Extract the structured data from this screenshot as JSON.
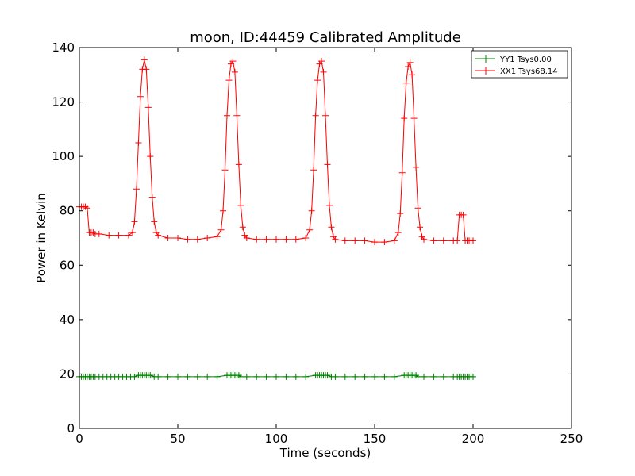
{
  "chart_data": {
    "type": "line",
    "title": "moon, ID:44459 Calibrated Amplitude",
    "xlabel": "Time (seconds)",
    "ylabel": "Power in Kelvin",
    "xlim": [
      0,
      250
    ],
    "ylim": [
      0,
      140
    ],
    "xticks": [
      0,
      50,
      100,
      150,
      200,
      250
    ],
    "yticks": [
      0,
      20,
      40,
      60,
      80,
      100,
      120,
      140
    ],
    "grid": false,
    "legend_position": "top-right",
    "series": [
      {
        "name": "YY1 Tsys0.00",
        "color": "#008000",
        "marker": "+",
        "x": [
          0,
          1,
          2,
          3,
          4,
          5,
          6,
          7,
          8,
          10,
          12,
          14,
          16,
          18,
          20,
          22,
          24,
          26,
          28,
          30,
          31,
          32,
          33,
          34,
          35,
          36,
          38,
          40,
          45,
          50,
          55,
          60,
          65,
          70,
          75,
          76,
          77,
          78,
          79,
          80,
          81,
          82,
          85,
          90,
          95,
          100,
          105,
          110,
          115,
          120,
          121,
          122,
          123,
          124,
          125,
          126,
          128,
          130,
          135,
          140,
          145,
          150,
          155,
          160,
          165,
          166,
          167,
          168,
          169,
          170,
          171,
          172,
          175,
          180,
          185,
          190,
          192,
          193,
          194,
          195,
          196,
          197,
          198,
          199,
          200
        ],
        "y": [
          19,
          19,
          19,
          19,
          19,
          19,
          19,
          19,
          19,
          19,
          19,
          19,
          19,
          19,
          19,
          19,
          19,
          19,
          19,
          19.5,
          19.5,
          19.5,
          19.5,
          19.5,
          19.5,
          19.5,
          19,
          19,
          19,
          19,
          19,
          19,
          19,
          19,
          19.5,
          19.5,
          19.5,
          19.5,
          19.5,
          19.5,
          19.5,
          19,
          19,
          19,
          19,
          19,
          19,
          19,
          19,
          19.5,
          19.5,
          19.5,
          19.5,
          19.5,
          19.5,
          19.5,
          19,
          19,
          19,
          19,
          19,
          19,
          19,
          19,
          19.5,
          19.5,
          19.5,
          19.5,
          19.5,
          19.5,
          19.5,
          19,
          19,
          19,
          19,
          19,
          19,
          19,
          19,
          19,
          19,
          19,
          19,
          19,
          19
        ]
      },
      {
        "name": "XX1 Tsys68.14",
        "color": "#ff0000",
        "marker": "+",
        "x": [
          0,
          1,
          2,
          3,
          4,
          5,
          6,
          7,
          8,
          10,
          15,
          20,
          25,
          27,
          28,
          29,
          30,
          31,
          32,
          33,
          34,
          35,
          36,
          37,
          38,
          39,
          40,
          45,
          50,
          55,
          60,
          65,
          70,
          72,
          73,
          74,
          75,
          76,
          77,
          78,
          79,
          80,
          81,
          82,
          83,
          84,
          85,
          90,
          95,
          100,
          105,
          110,
          115,
          117,
          118,
          119,
          120,
          121,
          122,
          123,
          124,
          125,
          126,
          127,
          128,
          129,
          130,
          135,
          140,
          145,
          150,
          155,
          160,
          162,
          163,
          164,
          165,
          166,
          167,
          168,
          169,
          170,
          171,
          172,
          173,
          174,
          175,
          180,
          185,
          190,
          192,
          193,
          194,
          195,
          196,
          197,
          198,
          199,
          200
        ],
        "y": [
          81.5,
          81.5,
          81.5,
          81.5,
          81,
          72,
          72,
          72,
          71.5,
          71.5,
          71,
          71,
          71,
          72,
          76,
          88,
          105,
          122,
          132,
          135.5,
          132,
          118,
          100,
          85,
          76,
          72,
          71,
          70,
          70,
          69.5,
          69.5,
          70,
          70.5,
          73,
          80,
          95,
          115,
          128,
          134,
          135,
          131,
          115,
          97,
          82,
          74,
          71,
          70,
          69.5,
          69.5,
          69.5,
          69.5,
          69.5,
          70,
          73,
          80,
          95,
          115,
          128,
          134,
          135,
          131,
          115,
          97,
          82,
          74,
          70.5,
          69.5,
          69,
          69,
          69,
          68.5,
          68.5,
          69,
          72,
          79,
          94,
          114,
          127,
          133,
          134.5,
          130,
          114,
          96,
          81,
          74,
          70.5,
          69.5,
          69,
          69,
          69,
          69,
          78.5,
          78.5,
          78.5,
          69,
          69,
          69,
          69,
          69
        ]
      }
    ]
  }
}
